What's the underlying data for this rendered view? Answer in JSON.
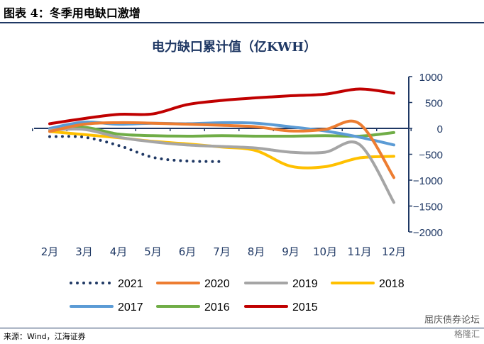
{
  "header": {
    "title": "图表 4：冬季用电缺口激增"
  },
  "source": "来源：Wind，江海证券",
  "watermark": "屈庆债券论坛",
  "watermark_sub": "格隆汇",
  "colors": {
    "rule": "#1f3864",
    "title": "#1f3864",
    "axis": "#1f3864"
  },
  "chart_data": {
    "type": "line",
    "title": "电力缺口累计值（亿KWH）",
    "x": [
      "2月",
      "3月",
      "4月",
      "5月",
      "6月",
      "7月",
      "8月",
      "9月",
      "10月",
      "11月",
      "12月"
    ],
    "ylim": [
      -2000,
      1000
    ],
    "yticks": [
      1000,
      500,
      0,
      -500,
      -1000,
      -1500,
      -2000
    ],
    "ytick_labels": [
      "1000",
      "500",
      "0",
      "−500",
      "−1000",
      "−1500",
      "−2000"
    ],
    "y_axis_side": "right",
    "legend_placement": "bottom",
    "series": [
      {
        "name": "2021",
        "color": "#1f3864",
        "style": "dotted",
        "values": [
          -160,
          -170,
          -330,
          -560,
          -630,
          -640,
          null,
          null,
          null,
          null,
          null
        ]
      },
      {
        "name": "2020",
        "color": "#ed7d31",
        "style": "solid",
        "values": [
          -60,
          80,
          110,
          100,
          80,
          60,
          30,
          -50,
          -20,
          90,
          -950
        ]
      },
      {
        "name": "2019",
        "color": "#a5a5a5",
        "style": "solid",
        "values": [
          -30,
          -20,
          -170,
          -260,
          -320,
          -350,
          -380,
          -460,
          -460,
          -310,
          -1430
        ]
      },
      {
        "name": "2018",
        "color": "#ffc000",
        "style": "solid",
        "values": [
          -60,
          -120,
          -180,
          -250,
          -300,
          -360,
          -430,
          -730,
          -740,
          -570,
          -540
        ]
      },
      {
        "name": "2017",
        "color": "#5b9bd5",
        "style": "solid",
        "values": [
          0,
          120,
          80,
          100,
          90,
          110,
          100,
          30,
          -50,
          -170,
          -320
        ]
      },
      {
        "name": "2016",
        "color": "#70ad47",
        "style": "solid",
        "values": [
          -40,
          20,
          -110,
          -140,
          -150,
          -140,
          -150,
          -150,
          -140,
          -150,
          -80
        ]
      },
      {
        "name": "2015",
        "color": "#c00000",
        "style": "solid",
        "values": [
          90,
          190,
          270,
          280,
          460,
          540,
          590,
          630,
          660,
          760,
          680
        ]
      }
    ]
  }
}
